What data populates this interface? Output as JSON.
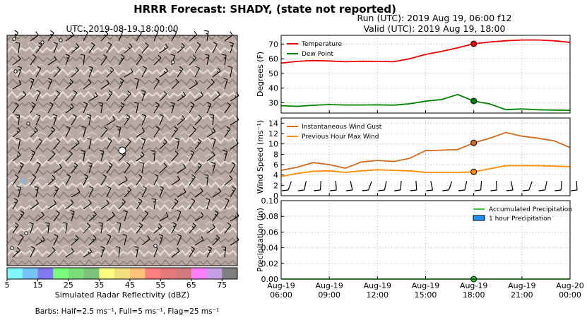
{
  "header": {
    "title": "HRRR Forecast: SHADY, (state not reported)",
    "run": "Run (UTC): 2019 Aug 19, 06:00 f12",
    "valid": "Valid (UTC): 2019 Aug 19, 18:00"
  },
  "map": {
    "title": "UTC: 2019-08-19 18:00:00",
    "colorbar": {
      "label": "Simulated Radar Reflectivity (dBZ)",
      "ticks": [
        "5",
        "15",
        "25",
        "35",
        "45",
        "55",
        "65",
        "75"
      ],
      "colors": [
        "#7ff7ff",
        "#75c3f7",
        "#8079f0",
        "#7cfc7c",
        "#79de79",
        "#7cc47c",
        "#fdfd7f",
        "#f2e07e",
        "#ffc27a",
        "#ff7f7f",
        "#e57878",
        "#d07c7c",
        "#ff7fff",
        "#c59fe4",
        "#7f7f7f"
      ]
    },
    "barb_note": "Barbs: Half=2.5 ms⁻¹, Full=5 ms⁻¹, Flag=25 ms⁻¹"
  },
  "chart_data": [
    {
      "type": "line",
      "ylabel": "Degrees (F)",
      "ylim": [
        23,
        76
      ],
      "yticks": [
        30,
        40,
        50,
        60,
        70
      ],
      "grid": true,
      "legend": "top-left",
      "x": [
        "06:00",
        "07:00",
        "08:00",
        "09:00",
        "10:00",
        "11:00",
        "12:00",
        "13:00",
        "14:00",
        "15:00",
        "16:00",
        "17:00",
        "18:00",
        "19:00",
        "20:00",
        "21:00",
        "22:00",
        "23:00",
        "00:00"
      ],
      "series": [
        {
          "name": "Temperature",
          "color": "#ee0000",
          "values": [
            57.0,
            58.2,
            58.8,
            58.5,
            58.0,
            58.3,
            58.2,
            58.0,
            60.0,
            63.0,
            65.0,
            67.5,
            70.2,
            71.4,
            72.3,
            72.8,
            72.8,
            72.3,
            71.2
          ]
        },
        {
          "name": "Dew Point",
          "color": "#008000",
          "values": [
            28.0,
            27.6,
            28.3,
            28.8,
            28.5,
            28.5,
            28.6,
            28.4,
            29.3,
            31.1,
            32.2,
            35.6,
            31.2,
            29.2,
            25.3,
            25.8,
            25.2,
            25.0,
            24.9
          ]
        }
      ],
      "highlight_index": 12
    },
    {
      "type": "line",
      "ylabel": "Wind Speed (ms⁻¹)",
      "ylim": [
        0,
        15
      ],
      "yticks": [
        0,
        2,
        4,
        6,
        8,
        10,
        12,
        14
      ],
      "grid": true,
      "legend": "top-left",
      "x": [
        "06:00",
        "07:00",
        "08:00",
        "09:00",
        "10:00",
        "11:00",
        "12:00",
        "13:00",
        "14:00",
        "15:00",
        "16:00",
        "17:00",
        "18:00",
        "19:00",
        "20:00",
        "21:00",
        "22:00",
        "23:00",
        "00:00"
      ],
      "series": [
        {
          "name": "Instantaneous Wind Gust",
          "color": "#d2691e",
          "values": [
            4.9,
            5.5,
            6.4,
            6.0,
            5.3,
            6.5,
            6.8,
            6.6,
            7.2,
            8.7,
            8.8,
            8.9,
            10.2,
            11.1,
            12.2,
            11.5,
            11.1,
            10.6,
            9.3
          ]
        },
        {
          "name": "Previous Hour Max Wind",
          "color": "#ff8c00",
          "values": [
            3.7,
            4.3,
            4.7,
            4.8,
            4.5,
            4.8,
            5.0,
            4.9,
            4.8,
            4.5,
            4.5,
            4.5,
            4.6,
            5.2,
            5.8,
            5.8,
            5.8,
            5.7,
            5.6
          ]
        }
      ],
      "highlight_index": 12
    },
    {
      "type": "area",
      "ylabel": "Precipitation (in)",
      "ylim": [
        0,
        0.1
      ],
      "yticks": [
        "0.00",
        "0.02",
        "0.04",
        "0.06",
        "0.08",
        "0.10"
      ],
      "grid": true,
      "legend": "top-right",
      "x": [
        "06:00",
        "07:00",
        "08:00",
        "09:00",
        "10:00",
        "11:00",
        "12:00",
        "13:00",
        "14:00",
        "15:00",
        "16:00",
        "17:00",
        "18:00",
        "19:00",
        "20:00",
        "21:00",
        "22:00",
        "23:00",
        "00:00"
      ],
      "series": [
        {
          "name": "Accumulated Precipitation",
          "color": "#32cd32",
          "values": [
            0,
            0,
            0,
            0,
            0,
            0,
            0,
            0,
            0,
            0,
            0,
            0,
            0,
            0,
            0,
            0,
            0,
            0,
            0
          ]
        },
        {
          "name": "1 hour Precipitation",
          "color": "#1e90ff",
          "values": [
            0,
            0,
            0,
            0,
            0,
            0,
            0,
            0,
            0,
            0,
            0,
            0,
            0,
            0,
            0,
            0,
            0,
            0,
            0
          ]
        }
      ],
      "highlight_index": 12,
      "xtick_labels": [
        [
          "Aug-19",
          "06:00"
        ],
        [
          "Aug-19",
          "09:00"
        ],
        [
          "Aug-19",
          "12:00"
        ],
        [
          "Aug-19",
          "15:00"
        ],
        [
          "Aug-19",
          "18:00"
        ],
        [
          "Aug-19",
          "21:00"
        ],
        [
          "Aug-20",
          "00:00"
        ]
      ]
    }
  ]
}
